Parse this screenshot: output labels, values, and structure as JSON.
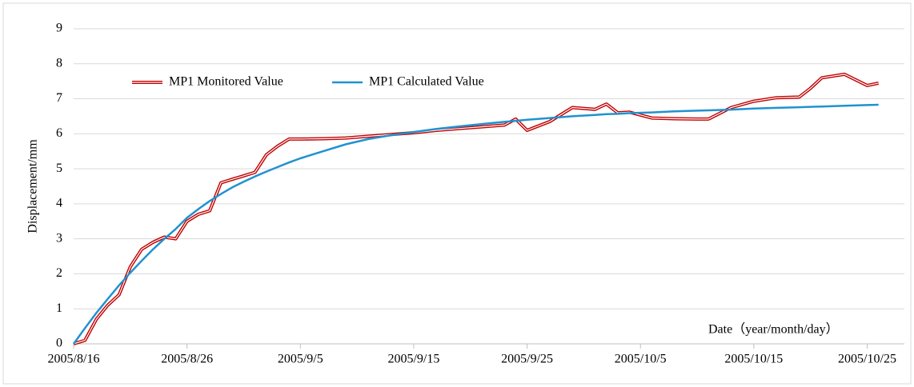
{
  "chart_data": {
    "type": "line",
    "y_label": "Displacement/mm",
    "annotation": "Date（year/month/day）",
    "x": [
      "2005/8/16",
      "2005/8/17",
      "2005/8/18",
      "2005/8/19",
      "2005/8/20",
      "2005/8/21",
      "2005/8/22",
      "2005/8/23",
      "2005/8/24",
      "2005/8/25",
      "2005/8/26",
      "2005/8/27",
      "2005/8/28",
      "2005/8/29",
      "2005/8/30",
      "2005/8/31",
      "2005/9/1",
      "2005/9/2",
      "2005/9/3",
      "2005/9/4",
      "2005/9/5",
      "2005/9/7",
      "2005/9/9",
      "2005/9/11",
      "2005/9/13",
      "2005/9/15",
      "2005/9/17",
      "2005/9/19",
      "2005/9/21",
      "2005/9/23",
      "2005/9/24",
      "2005/9/25",
      "2005/9/27",
      "2005/9/29",
      "2005/10/1",
      "2005/10/2",
      "2005/10/3",
      "2005/10/4",
      "2005/10/6",
      "2005/10/8",
      "2005/10/10",
      "2005/10/11",
      "2005/10/13",
      "2005/10/15",
      "2005/10/17",
      "2005/10/19",
      "2005/10/20",
      "2005/10/21",
      "2005/10/23",
      "2005/10/25",
      "2005/10/26"
    ],
    "series": [
      {
        "name": "MP1 Monitored Value",
        "color": "#c00000",
        "values": [
          0,
          0.1,
          0.7,
          1.1,
          1.4,
          2.2,
          2.7,
          2.9,
          3.05,
          3.0,
          3.5,
          3.7,
          3.8,
          4.6,
          4.7,
          4.8,
          4.9,
          5.4,
          5.65,
          5.85,
          5.85,
          5.86,
          5.88,
          5.93,
          5.98,
          6.03,
          6.1,
          6.15,
          6.2,
          6.25,
          6.42,
          6.1,
          6.35,
          6.75,
          6.7,
          6.85,
          6.6,
          6.62,
          6.45,
          6.43,
          6.42,
          6.42,
          6.75,
          6.93,
          7.03,
          7.05,
          7.3,
          7.6,
          7.7,
          7.38,
          7.45
        ]
      },
      {
        "name": "MP1 Calculated Value",
        "color": "#2092d0",
        "values": [
          0,
          0.45,
          0.88,
          1.28,
          1.67,
          2.03,
          2.37,
          2.7,
          3.0,
          3.28,
          3.6,
          3.85,
          4.08,
          4.28,
          4.47,
          4.63,
          4.78,
          4.92,
          5.05,
          5.18,
          5.3,
          5.5,
          5.7,
          5.85,
          5.96,
          6.05,
          6.14,
          6.21,
          6.28,
          6.34,
          6.37,
          6.4,
          6.45,
          6.5,
          6.54,
          6.56,
          6.57,
          6.59,
          6.61,
          6.64,
          6.66,
          6.67,
          6.69,
          6.72,
          6.74,
          6.76,
          6.77,
          6.78,
          6.8,
          6.82,
          6.83
        ]
      }
    ],
    "xlim": [
      "2005/8/16",
      "2005/10/28"
    ],
    "xticks": [
      "2005/8/16",
      "2005/8/26",
      "2005/9/5",
      "2005/9/15",
      "2005/9/25",
      "2005/10/5",
      "2005/10/15",
      "2005/10/25"
    ],
    "ylim": [
      0,
      9
    ],
    "yticks": [
      0,
      1,
      2,
      3,
      4,
      5,
      6,
      7,
      8,
      9
    ],
    "grid": true
  }
}
